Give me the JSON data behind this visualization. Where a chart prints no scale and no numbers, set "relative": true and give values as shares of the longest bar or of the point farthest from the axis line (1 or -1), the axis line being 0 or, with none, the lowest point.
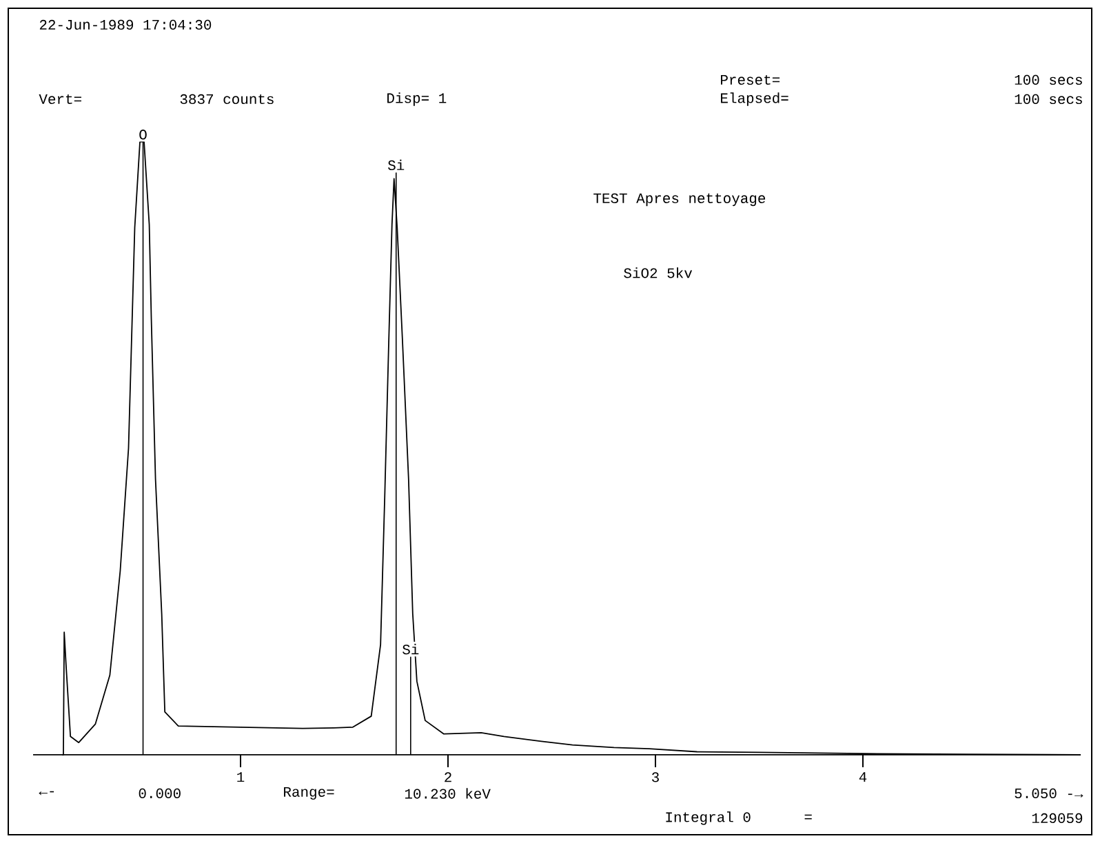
{
  "chart_data": {
    "type": "line",
    "relative": true,
    "xlabel": null,
    "xlim": [
      0,
      5.05
    ],
    "xticks": [
      1,
      2,
      3,
      4
    ],
    "tick_labels": "x",
    "series": [
      {
        "color": "#000000",
        "x": [
          0.14,
          0.146,
          0.15,
          0.16,
          0.18,
          0.22,
          0.3,
          0.37,
          0.42,
          0.46,
          0.49,
          0.515,
          0.535,
          0.56,
          0.57,
          0.59,
          0.62,
          0.635,
          0.7,
          0.85,
          1.0,
          1.15,
          1.3,
          1.45,
          1.54,
          1.63,
          1.675,
          1.695,
          1.715,
          1.73,
          1.74,
          1.755,
          1.78,
          1.81,
          1.83,
          1.85,
          1.89,
          1.98,
          2.16,
          2.27,
          2.45,
          2.6,
          2.8,
          2.97,
          3.2,
          3.5,
          4.0,
          4.5,
          5.05
        ],
        "values": [
          0.0,
          0.0,
          0.2,
          0.14,
          0.03,
          0.02,
          0.05,
          0.13,
          0.3,
          0.5,
          0.86,
          1.0,
          1.0,
          0.865,
          0.71,
          0.45,
          0.23,
          0.07,
          0.047,
          0.046,
          0.045,
          0.044,
          0.043,
          0.044,
          0.045,
          0.063,
          0.18,
          0.42,
          0.68,
          0.865,
          0.94,
          0.86,
          0.68,
          0.45,
          0.23,
          0.12,
          0.056,
          0.034,
          0.036,
          0.03,
          0.022,
          0.016,
          0.012,
          0.01,
          0.005,
          0.004,
          0.002,
          0.001,
          0.0
        ]
      }
    ],
    "ref_lines": [
      {
        "axis": "x",
        "value": 0.53,
        "label": "O"
      },
      {
        "axis": "x",
        "value": 1.75,
        "label": "Si"
      },
      {
        "axis": "x",
        "value": 1.82,
        "label": "Si"
      }
    ],
    "annotations": [
      "22-Jun-1989 17:04:30",
      "Vert=",
      "3837 counts",
      "Disp= 1",
      "Preset=",
      "100 secs",
      "Elapsed=",
      "100 secs",
      "TEST Apres nettoyage",
      "SiO2 5kv",
      "←-",
      "0.000",
      "Range=",
      "10.230 keV",
      "5.050 -→",
      "Integral 0",
      "=",
      "129059"
    ]
  }
}
